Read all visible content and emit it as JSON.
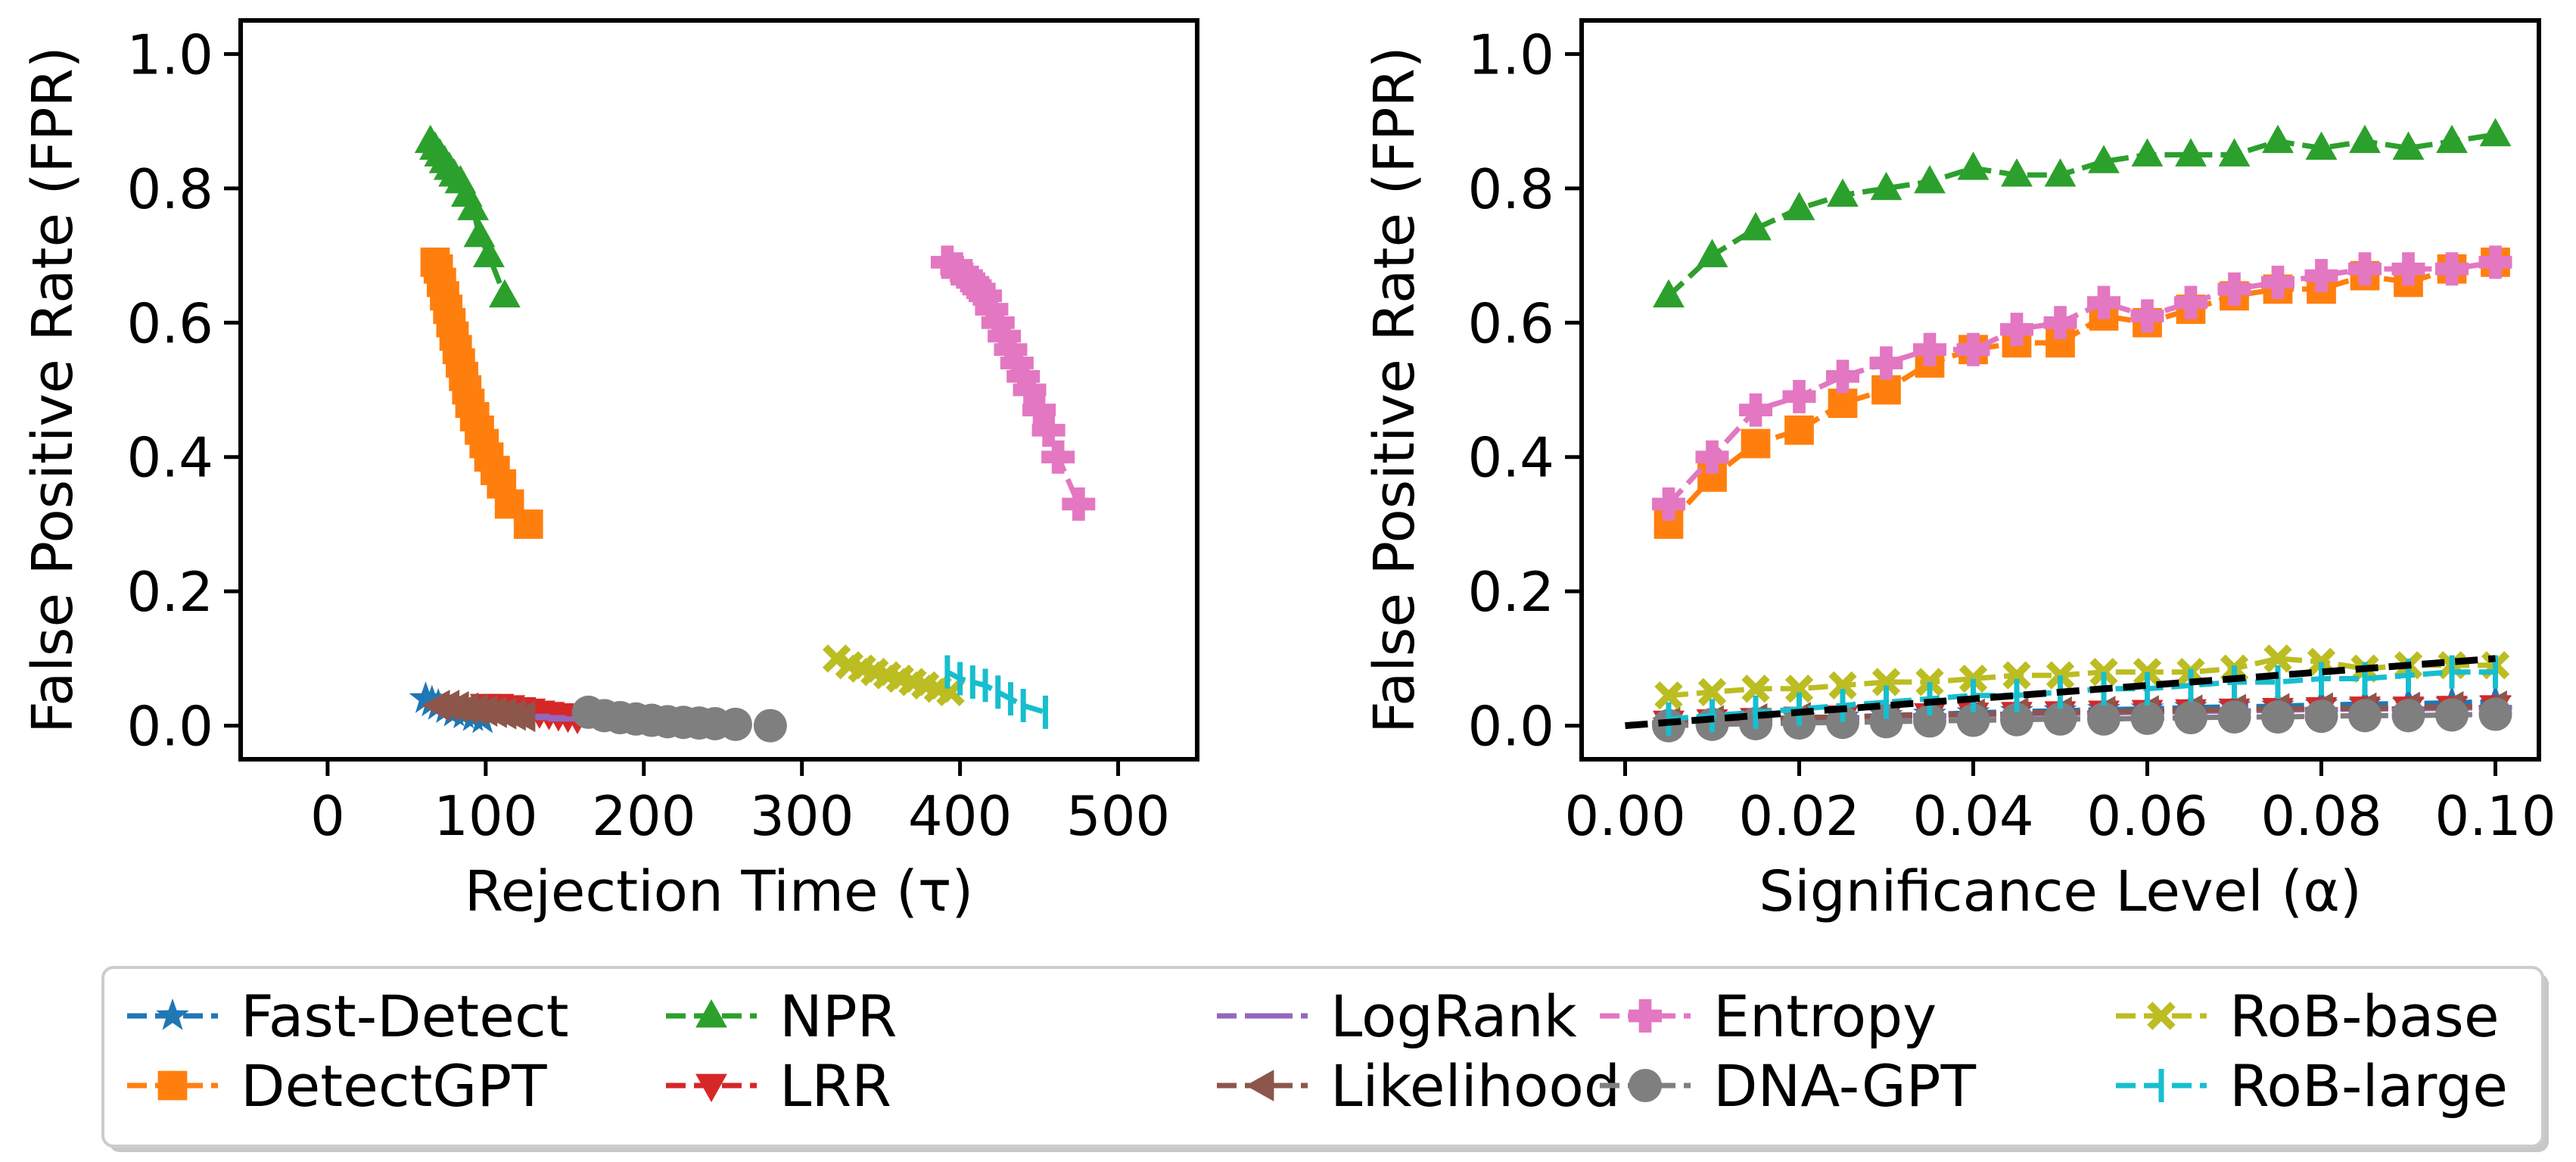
{
  "chart_data": [
    {
      "type": "line",
      "xlabel": "Rejection Time (τ)",
      "ylabel": "False Positive Rate (FPR)",
      "xlim": [
        -55,
        550
      ],
      "ylim": [
        -0.05,
        1.05
      ],
      "xticks": [
        0,
        100,
        200,
        300,
        400,
        500
      ],
      "xtick_labels": [
        "0",
        "100",
        "200",
        "300",
        "400",
        "500"
      ],
      "yticks": [
        0.0,
        0.2,
        0.4,
        0.6,
        0.8,
        1.0
      ],
      "ytick_labels": [
        "0.0",
        "0.2",
        "0.4",
        "0.6",
        "0.8",
        "1.0"
      ],
      "series": [
        {
          "name": "Fast-Detect",
          "x": [
            62,
            66,
            70,
            75,
            80,
            86,
            92,
            98
          ],
          "y": [
            0.04,
            0.035,
            0.03,
            0.025,
            0.02,
            0.017,
            0.013,
            0.01
          ]
        },
        {
          "name": "DetectGPT",
          "x": [
            68,
            70,
            72,
            74,
            76,
            78,
            80,
            82,
            84,
            86,
            88,
            90,
            93,
            96,
            99,
            102,
            106,
            110,
            115,
            127
          ],
          "y": [
            0.69,
            0.68,
            0.66,
            0.64,
            0.62,
            0.6,
            0.58,
            0.56,
            0.54,
            0.52,
            0.5,
            0.48,
            0.46,
            0.44,
            0.42,
            0.4,
            0.38,
            0.36,
            0.33,
            0.3
          ]
        },
        {
          "name": "NPR",
          "x": [
            65,
            68,
            71,
            74,
            77,
            80,
            84,
            88,
            92,
            96,
            102,
            112
          ],
          "y": [
            0.87,
            0.86,
            0.85,
            0.84,
            0.83,
            0.82,
            0.81,
            0.79,
            0.77,
            0.73,
            0.7,
            0.64
          ]
        },
        {
          "name": "LRR",
          "x": [
            100,
            108,
            115,
            122,
            128,
            134,
            140,
            146,
            152,
            158
          ],
          "y": [
            0.03,
            0.03,
            0.028,
            0.025,
            0.023,
            0.02,
            0.018,
            0.016,
            0.014,
            0.012
          ]
        },
        {
          "name": "LogRank",
          "x": [
            80,
            90,
            100,
            110,
            120,
            130,
            140,
            150
          ],
          "y": [
            0.025,
            0.022,
            0.02,
            0.018,
            0.016,
            0.014,
            0.012,
            0.01
          ]
        },
        {
          "name": "Likelihood",
          "x": [
            70,
            76,
            82,
            88,
            94,
            100,
            106,
            112,
            118,
            124
          ],
          "y": [
            0.03,
            0.03,
            0.028,
            0.026,
            0.024,
            0.022,
            0.02,
            0.018,
            0.016,
            0.014
          ]
        },
        {
          "name": "Entropy",
          "x": [
            392,
            398,
            404,
            408,
            412,
            416,
            420,
            424,
            428,
            432,
            436,
            440,
            444,
            450,
            456,
            462,
            475
          ],
          "y": [
            0.69,
            0.68,
            0.67,
            0.66,
            0.65,
            0.64,
            0.62,
            0.6,
            0.58,
            0.56,
            0.54,
            0.52,
            0.5,
            0.47,
            0.44,
            0.4,
            0.33
          ]
        },
        {
          "name": "DNA-GPT",
          "x": [
            165,
            175,
            185,
            195,
            205,
            215,
            225,
            235,
            245,
            258,
            280
          ],
          "y": [
            0.02,
            0.015,
            0.012,
            0.01,
            0.008,
            0.006,
            0.005,
            0.004,
            0.003,
            0.002,
            0.0
          ]
        },
        {
          "name": "RoB-base",
          "x": [
            322,
            330,
            338,
            346,
            354,
            362,
            370,
            378,
            386,
            394
          ],
          "y": [
            0.1,
            0.09,
            0.085,
            0.08,
            0.075,
            0.07,
            0.065,
            0.06,
            0.055,
            0.05
          ]
        },
        {
          "name": "RoB-large",
          "x": [
            392,
            400,
            408,
            416,
            424,
            432,
            440,
            454
          ],
          "y": [
            0.08,
            0.07,
            0.065,
            0.06,
            0.05,
            0.04,
            0.03,
            0.02
          ]
        }
      ]
    },
    {
      "type": "line",
      "xlabel": "Significance Level (α)",
      "ylabel": "False Positive Rate (FPR)",
      "xlim": [
        -0.005,
        0.105
      ],
      "ylim": [
        -0.05,
        1.05
      ],
      "xticks": [
        0.0,
        0.02,
        0.04,
        0.06,
        0.08,
        0.1
      ],
      "xtick_labels": [
        "0.00",
        "0.02",
        "0.04",
        "0.06",
        "0.08",
        "0.10"
      ],
      "yticks": [
        0.0,
        0.2,
        0.4,
        0.6,
        0.8,
        1.0
      ],
      "ytick_labels": [
        "0.0",
        "0.2",
        "0.4",
        "0.6",
        "0.8",
        "1.0"
      ],
      "x": [
        0.005,
        0.01,
        0.015,
        0.02,
        0.025,
        0.03,
        0.035,
        0.04,
        0.045,
        0.05,
        0.055,
        0.06,
        0.065,
        0.07,
        0.075,
        0.08,
        0.085,
        0.09,
        0.095,
        0.1
      ],
      "reference_line": {
        "x": [
          0.0,
          0.1
        ],
        "y": [
          0.0,
          0.1
        ]
      },
      "series": [
        {
          "name": "Fast-Detect",
          "y": [
            0.004,
            0.006,
            0.009,
            0.011,
            0.013,
            0.015,
            0.017,
            0.019,
            0.021,
            0.022,
            0.024,
            0.025,
            0.027,
            0.028,
            0.029,
            0.031,
            0.032,
            0.033,
            0.034,
            0.036
          ]
        },
        {
          "name": "DetectGPT",
          "y": [
            0.3,
            0.37,
            0.42,
            0.44,
            0.48,
            0.5,
            0.54,
            0.56,
            0.57,
            0.57,
            0.61,
            0.6,
            0.62,
            0.64,
            0.65,
            0.65,
            0.67,
            0.66,
            0.68,
            0.69
          ]
        },
        {
          "name": "NPR",
          "y": [
            0.64,
            0.7,
            0.74,
            0.77,
            0.79,
            0.8,
            0.81,
            0.83,
            0.82,
            0.82,
            0.84,
            0.85,
            0.85,
            0.85,
            0.87,
            0.86,
            0.87,
            0.86,
            0.87,
            0.88
          ]
        },
        {
          "name": "LRR",
          "y": [
            0.005,
            0.007,
            0.009,
            0.011,
            0.013,
            0.014,
            0.016,
            0.017,
            0.018,
            0.019,
            0.02,
            0.021,
            0.022,
            0.023,
            0.024,
            0.025,
            0.026,
            0.026,
            0.027,
            0.028
          ]
        },
        {
          "name": "LogRank",
          "y": [
            0.004,
            0.006,
            0.008,
            0.01,
            0.012,
            0.013,
            0.015,
            0.016,
            0.017,
            0.018,
            0.019,
            0.02,
            0.021,
            0.022,
            0.023,
            0.024,
            0.025,
            0.025,
            0.026,
            0.027
          ]
        },
        {
          "name": "Likelihood",
          "y": [
            0.005,
            0.007,
            0.01,
            0.012,
            0.013,
            0.015,
            0.016,
            0.017,
            0.019,
            0.02,
            0.021,
            0.022,
            0.023,
            0.024,
            0.025,
            0.026,
            0.026,
            0.027,
            0.028,
            0.029
          ]
        },
        {
          "name": "Entropy",
          "y": [
            0.33,
            0.4,
            0.47,
            0.49,
            0.52,
            0.54,
            0.56,
            0.56,
            0.59,
            0.6,
            0.63,
            0.61,
            0.63,
            0.65,
            0.66,
            0.67,
            0.68,
            0.68,
            0.68,
            0.69
          ]
        },
        {
          "name": "DNA-GPT",
          "y": [
            0.0,
            0.002,
            0.003,
            0.004,
            0.005,
            0.006,
            0.007,
            0.008,
            0.009,
            0.01,
            0.01,
            0.011,
            0.012,
            0.013,
            0.013,
            0.014,
            0.015,
            0.015,
            0.016,
            0.017
          ]
        },
        {
          "name": "RoB-base",
          "y": [
            0.045,
            0.05,
            0.055,
            0.055,
            0.06,
            0.065,
            0.065,
            0.07,
            0.075,
            0.075,
            0.08,
            0.08,
            0.08,
            0.085,
            0.1,
            0.095,
            0.085,
            0.09,
            0.09,
            0.09
          ]
        },
        {
          "name": "RoB-large",
          "y": [
            0.01,
            0.015,
            0.02,
            0.025,
            0.03,
            0.035,
            0.04,
            0.045,
            0.045,
            0.05,
            0.055,
            0.055,
            0.06,
            0.065,
            0.065,
            0.07,
            0.07,
            0.075,
            0.08,
            0.08
          ]
        }
      ]
    }
  ],
  "legend": {
    "placement": "bottom-center",
    "columns": 5,
    "entries": [
      {
        "name": "Fast-Detect",
        "color": "#1f77b4",
        "marker": "star"
      },
      {
        "name": "DetectGPT",
        "color": "#ff7f0e",
        "marker": "square"
      },
      {
        "name": "NPR",
        "color": "#2ca02c",
        "marker": "triangle-up"
      },
      {
        "name": "LRR",
        "color": "#d62728",
        "marker": "triangle-down"
      },
      {
        "name": "LogRank",
        "color": "#9467bd",
        "marker": "hline"
      },
      {
        "name": "Likelihood",
        "color": "#8c564b",
        "marker": "triangle-left"
      },
      {
        "name": "Entropy",
        "color": "#e377c2",
        "marker": "plus"
      },
      {
        "name": "DNA-GPT",
        "color": "#7f7f7f",
        "marker": "circle"
      },
      {
        "name": "RoB-base",
        "color": "#bcbd22",
        "marker": "x"
      },
      {
        "name": "RoB-large",
        "color": "#17becf",
        "marker": "vline"
      }
    ]
  }
}
